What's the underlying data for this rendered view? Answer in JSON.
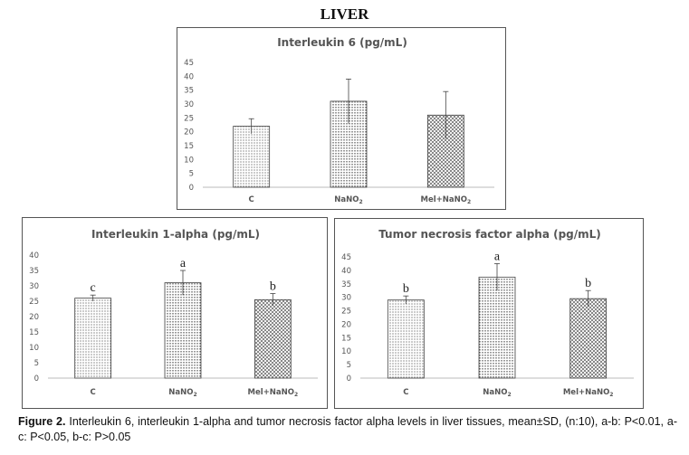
{
  "page": {
    "heading": "LIVER",
    "caption_label": "Figure 2.",
    "caption_text": "Interleukin 6, interleukin 1-alpha and tumor necrosis factor alpha levels in liver tissues, mean±SD, (n:10), a-b: P<0.01, a-c: P<0.05, b-c: P>0.05"
  },
  "chart_data": [
    {
      "type": "bar",
      "title": "Interleukin 6 (pg/mL)",
      "categories": [
        "C",
        "NaNO2",
        "Mel+NaNO2"
      ],
      "values": [
        22,
        31,
        26
      ],
      "error": [
        2.7,
        8,
        8.5
      ],
      "significance_letters": [],
      "ylim": [
        0,
        45
      ],
      "yticks": [
        0,
        5,
        10,
        15,
        20,
        25,
        30,
        35,
        40,
        45
      ],
      "grid": false,
      "legend": "none"
    },
    {
      "type": "bar",
      "title": "Interleukin 1-alpha (pg/mL)",
      "categories": [
        "C",
        "NaNO2",
        "Mel+NaNO2"
      ],
      "values": [
        26,
        31,
        25.5
      ],
      "error": [
        1,
        4,
        2
      ],
      "significance_letters": [
        "c",
        "a",
        "b"
      ],
      "ylim": [
        0,
        40
      ],
      "yticks": [
        0,
        5,
        10,
        15,
        20,
        25,
        30,
        35,
        40
      ],
      "grid": false,
      "legend": "none"
    },
    {
      "type": "bar",
      "title": "Tumor necrosis factor alpha (pg/mL)",
      "categories": [
        "C",
        "NaNO2",
        "Mel+NaNO2"
      ],
      "values": [
        29,
        37.5,
        29.5
      ],
      "error": [
        1.5,
        5,
        3
      ],
      "significance_letters": [
        "b",
        "a",
        "b"
      ],
      "ylim": [
        0,
        45
      ],
      "yticks": [
        0,
        5,
        10,
        15,
        20,
        25,
        30,
        35,
        40,
        45
      ],
      "grid": false,
      "legend": "none"
    }
  ]
}
